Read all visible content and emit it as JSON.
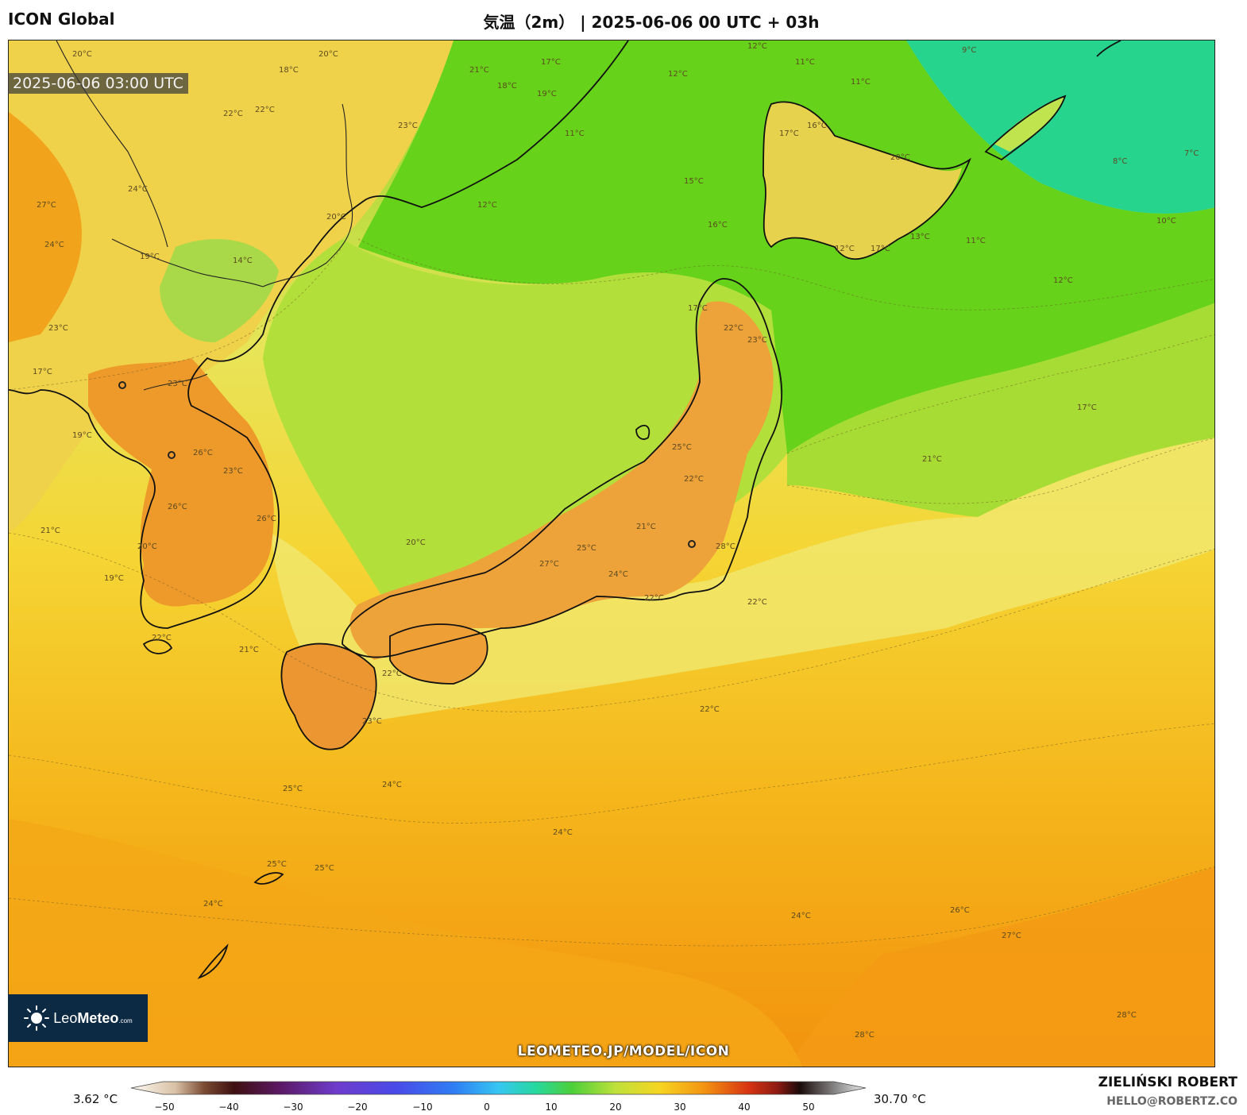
{
  "header": {
    "model": "ICON Global",
    "title": "気温（2m） | 2025-06-06 00 UTC + 03h"
  },
  "map": {
    "valid_time": "2025-06-06 03:00 UTC",
    "watermark": "LEOMETEO.JP/MODEL/ICON",
    "contour_labels": [
      "20°C",
      "18°C",
      "20°C",
      "21°C",
      "17°C",
      "12°C",
      "11°C",
      "9°C",
      "22°C",
      "18°C",
      "19°C",
      "12°C",
      "11°C",
      "8°C",
      "7°C",
      "22°C",
      "23°C",
      "11°C",
      "16°C",
      "17°C",
      "20°C",
      "27°C",
      "24°C",
      "20°C",
      "12°C",
      "15°C",
      "10°C",
      "24°C",
      "16°C",
      "19°C",
      "13°C",
      "14°C",
      "17°C",
      "12°C",
      "11°C",
      "12°C",
      "23°C",
      "17°C",
      "22°C",
      "23°C",
      "17°C",
      "21°C",
      "19°C",
      "23°C",
      "26°C",
      "23°C",
      "25°C",
      "26°C",
      "22°C",
      "21°C",
      "20°C",
      "21°C",
      "26°C",
      "17°C",
      "19°C",
      "20°C",
      "27°C",
      "25°C",
      "24°C",
      "28°C",
      "22°C",
      "21°C",
      "22°C",
      "22°C",
      "23°C",
      "22°C",
      "22°C",
      "25°C",
      "24°C",
      "24°C",
      "25°C",
      "25°C",
      "24°C",
      "24°C",
      "26°C",
      "27°C",
      "28°C",
      "28°C"
    ],
    "colors": {
      "cold_sea": "#1fcf92",
      "cool": "#6ad410",
      "mild": "#b8e23a",
      "pale": "#f3ea72",
      "warm": "#f6c71e",
      "warmer": "#f4a512",
      "hot": "#f08a0a",
      "land_hot": "#e8851b"
    }
  },
  "logo": {
    "brand_light": "Leo",
    "brand_bold": "Meteo",
    "brand_suffix": ".com"
  },
  "legend": {
    "min_label": "3.62 °C",
    "max_label": "30.70 °C",
    "ticks": [
      "−50",
      "−40",
      "−30",
      "−20",
      "−10",
      "0",
      "10",
      "20",
      "30",
      "40",
      "50"
    ]
  },
  "credit": {
    "author": "ZIELIŃSKI ROBERT",
    "email": "HELLO@ROBERTZ.CO"
  }
}
